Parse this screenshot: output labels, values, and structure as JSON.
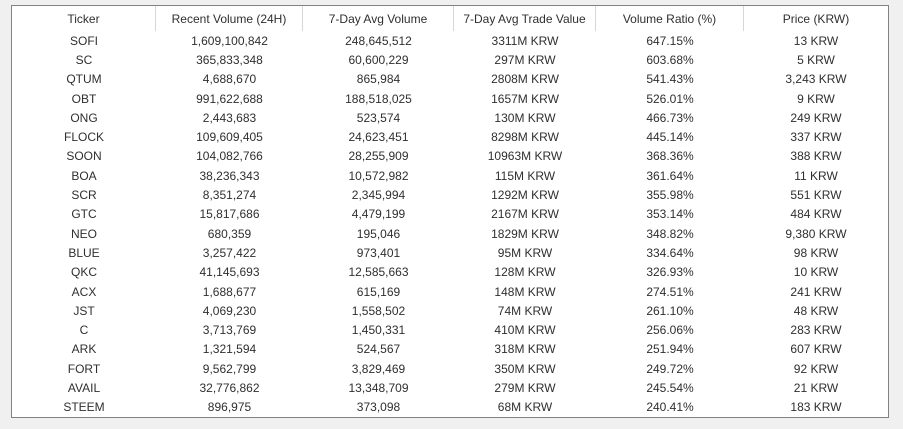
{
  "table": {
    "columns": [
      "Ticker",
      "Recent Volume (24H)",
      "7-Day Avg Volume",
      "7-Day Avg Trade Value",
      "Volume Ratio (%)",
      "Price (KRW)"
    ],
    "rows": [
      [
        "SOFI",
        "1,609,100,842",
        "248,645,512",
        "3311M KRW",
        "647.15%",
        "13 KRW"
      ],
      [
        "SC",
        "365,833,348",
        "60,600,229",
        "297M KRW",
        "603.68%",
        "5 KRW"
      ],
      [
        "QTUM",
        "4,688,670",
        "865,984",
        "2808M KRW",
        "541.43%",
        "3,243 KRW"
      ],
      [
        "OBT",
        "991,622,688",
        "188,518,025",
        "1657M KRW",
        "526.01%",
        "9 KRW"
      ],
      [
        "ONG",
        "2,443,683",
        "523,574",
        "130M KRW",
        "466.73%",
        "249 KRW"
      ],
      [
        "FLOCK",
        "109,609,405",
        "24,623,451",
        "8298M KRW",
        "445.14%",
        "337 KRW"
      ],
      [
        "SOON",
        "104,082,766",
        "28,255,909",
        "10963M KRW",
        "368.36%",
        "388 KRW"
      ],
      [
        "BOA",
        "38,236,343",
        "10,572,982",
        "115M KRW",
        "361.64%",
        "11 KRW"
      ],
      [
        "SCR",
        "8,351,274",
        "2,345,994",
        "1292M KRW",
        "355.98%",
        "551 KRW"
      ],
      [
        "GTC",
        "15,817,686",
        "4,479,199",
        "2167M KRW",
        "353.14%",
        "484 KRW"
      ],
      [
        "NEO",
        "680,359",
        "195,046",
        "1829M KRW",
        "348.82%",
        "9,380 KRW"
      ],
      [
        "BLUE",
        "3,257,422",
        "973,401",
        "95M KRW",
        "334.64%",
        "98 KRW"
      ],
      [
        "QKC",
        "41,145,693",
        "12,585,663",
        "128M KRW",
        "326.93%",
        "10 KRW"
      ],
      [
        "ACX",
        "1,688,677",
        "615,169",
        "148M KRW",
        "274.51%",
        "241 KRW"
      ],
      [
        "JST",
        "4,069,230",
        "1,558,502",
        "74M KRW",
        "261.10%",
        "48 KRW"
      ],
      [
        "C",
        "3,713,769",
        "1,450,331",
        "410M KRW",
        "256.06%",
        "283 KRW"
      ],
      [
        "ARK",
        "1,321,594",
        "524,567",
        "318M KRW",
        "251.94%",
        "607 KRW"
      ],
      [
        "FORT",
        "9,562,799",
        "3,829,469",
        "350M KRW",
        "249.72%",
        "92 KRW"
      ],
      [
        "AVAIL",
        "32,776,862",
        "13,348,709",
        "279M KRW",
        "245.54%",
        "21 KRW"
      ],
      [
        "STEEM",
        "896,975",
        "373,098",
        "68M KRW",
        "240.41%",
        "183 KRW"
      ]
    ]
  },
  "colors": {
    "page_background": "#f0f0f0",
    "table_background": "#ffffff",
    "table_border": "#7f8388",
    "header_separator": "#d6d6d6",
    "text": "#2f2f2f"
  }
}
